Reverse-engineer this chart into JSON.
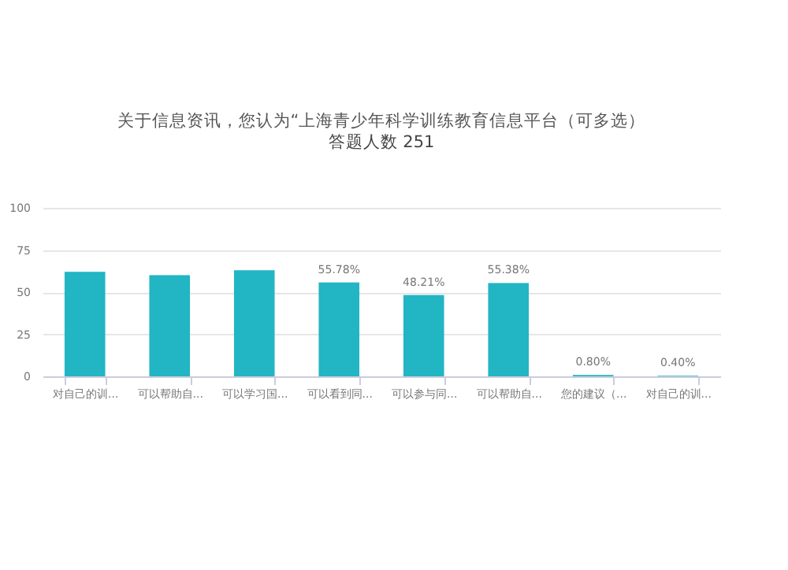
{
  "chart_data": {
    "type": "bar",
    "title": "关于信息资讯，您认为“上海青少年科学训练教育信息平台（可多选）",
    "subtitle": "答题人数 251",
    "categories": [
      "对自己的训...",
      "可以帮助自...",
      "可以学习国...",
      "可以看到同...",
      "可以参与同...",
      "可以帮助自...",
      "您的建议（...",
      "对自己的训..."
    ],
    "values": [
      62,
      60,
      63,
      55.78,
      48.21,
      55.38,
      0.8,
      0.4
    ],
    "value_labels": [
      null,
      null,
      null,
      "55.78%",
      "48.21%",
      "55.38%",
      "0.80%",
      "0.40%"
    ],
    "color": "#22b5c3",
    "ylim": [
      0,
      100
    ],
    "yticks": [
      0,
      25,
      50,
      75,
      100
    ],
    "grid": "y"
  }
}
